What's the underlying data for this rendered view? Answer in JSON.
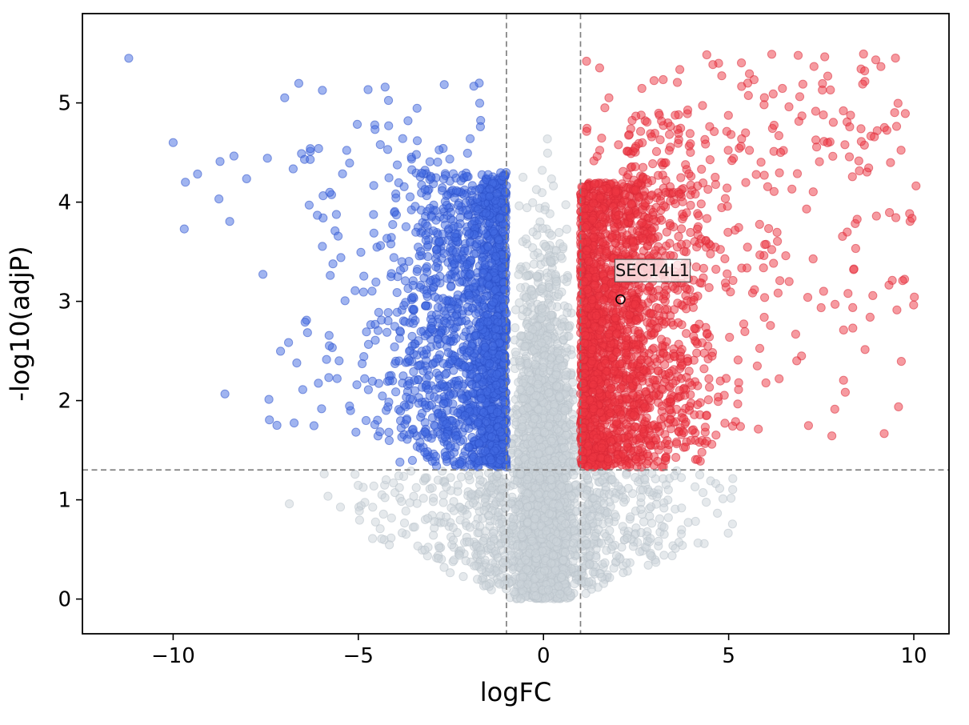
{
  "figure": {
    "background": "#ffffff"
  },
  "chart_data": {
    "type": "scatter",
    "variant": "volcano-plot",
    "title": "",
    "xlabel": "logFC",
    "ylabel": "-log10(adjP)",
    "xlim": [
      -12.45,
      10.95
    ],
    "ylim": [
      -0.35,
      5.9
    ],
    "x_ticks": [
      -10,
      -5,
      0,
      5,
      10
    ],
    "y_ticks": [
      0,
      1,
      2,
      3,
      4,
      5
    ],
    "grid": false,
    "legend": "none",
    "point_radius_px": 5.1,
    "threshold_lines": {
      "vertical_logfc": [
        -1,
        1
      ],
      "horizontal_neglog10_adjp": 1.301,
      "color": "#808080",
      "style": "dashed"
    },
    "series": [
      {
        "name": "not-significant",
        "color": "#ccd4da",
        "edge": "#b9c3ca",
        "alpha": 0.5
      },
      {
        "name": "downregulated",
        "color": "#4169e1",
        "edge": "#2c50c9",
        "alpha": 0.5
      },
      {
        "name": "upregulated",
        "color": "#ee3642",
        "edge": "#d92836",
        "alpha": 0.5
      }
    ],
    "annotations": [
      {
        "label": "SEC14L1",
        "x": 2.08,
        "y": 3.02
      }
    ],
    "generation": {
      "seed": 20,
      "note": "dense point clouds are procedurally approximated to match the screenshot",
      "groups": [
        {
          "kind": "center",
          "series": "not-significant",
          "count": 2600,
          "y_sd": 1.55,
          "y_max": 4.65,
          "x_sd": 0.46,
          "x_halfwidth": 1.02,
          "x_taper": 0.09
        },
        {
          "kind": "wings",
          "series": "not-significant",
          "count": 620,
          "x_start": 1.0,
          "x_scale": 1.15,
          "x_max": 6.9,
          "y_top": 1.3,
          "y_slope": 0.16
        },
        {
          "kind": "block",
          "series": "downregulated",
          "count": 1750,
          "sign": -1,
          "x_start": 1.0,
          "x_scale": 0.85,
          "x_max": 4.2,
          "y_min": 1.33,
          "y_max": 4.3,
          "y_pow": 1.15
        },
        {
          "kind": "spread",
          "series": "downregulated",
          "count": 270,
          "sign": -1,
          "x_start": 2.3,
          "x_scale": 1.7,
          "x_max": 9.7,
          "y_min": 1.6,
          "y_max": 4.55
        },
        {
          "kind": "band",
          "series": "downregulated",
          "count": 30,
          "sign": -1,
          "x_min": 1.4,
          "x_max": 7.2,
          "y_min": 4.3,
          "y_max": 5.2
        },
        {
          "kind": "fixed",
          "series": "downregulated",
          "points": [
            [
              -11.2,
              5.45
            ],
            [
              -10.0,
              4.6
            ],
            [
              -9.7,
              3.73
            ]
          ]
        },
        {
          "kind": "block",
          "series": "upregulated",
          "count": 2000,
          "sign": 1,
          "x_start": 1.0,
          "x_scale": 1.0,
          "x_max": 4.5,
          "y_min": 1.33,
          "y_max": 4.2,
          "y_pow": 1.1
        },
        {
          "kind": "spread",
          "series": "upregulated",
          "count": 430,
          "sign": 1,
          "x_start": 2.2,
          "x_scale": 1.9,
          "x_max": 10.1,
          "y_min": 1.55,
          "y_max": 4.9
        },
        {
          "kind": "band",
          "series": "upregulated",
          "count": 95,
          "sign": 1,
          "x_min": 1.15,
          "x_max": 9.85,
          "y_min": 4.25,
          "y_max": 5.5
        },
        {
          "kind": "band",
          "series": "upregulated",
          "count": 16,
          "sign": 1,
          "x_min": 8.3,
          "x_max": 10.0,
          "y_min": 2.7,
          "y_max": 4.3
        }
      ]
    }
  }
}
